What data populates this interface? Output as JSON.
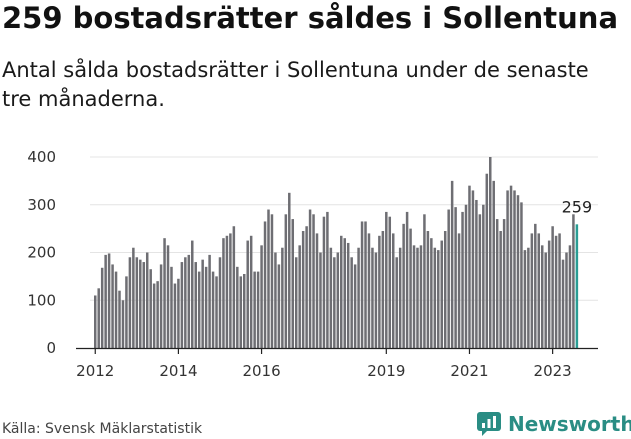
{
  "title": "259 bostadsrätter såldes i Sollentuna",
  "subtitle": "Antal sålda bostadsrätter i Sollentuna under de senaste tre månaderna.",
  "source": "Källa: Svensk Mäklarstatistik",
  "brand": {
    "name": "Newsworthy",
    "color": "#2a8d84",
    "icon": "newsworthy-logo-icon"
  },
  "colors": {
    "bar": "#6e6e73",
    "highlight": "#2a9d94",
    "axis": "#222222",
    "grid": "#e4e4e4"
  },
  "chart_data": {
    "type": "bar",
    "title": "259 bostadsrätter såldes i Sollentuna",
    "xlabel": "",
    "ylabel": "",
    "ylim": [
      0,
      400
    ],
    "yticks": [
      0,
      100,
      200,
      300,
      400
    ],
    "grid": true,
    "start": {
      "year": 2012,
      "month": 1
    },
    "xtick_labels": [
      "2012",
      "2014",
      "2016",
      "2019",
      "2021",
      "2023"
    ],
    "xtick_years": [
      2012,
      2014,
      2016,
      2019,
      2021,
      2023
    ],
    "values": [
      110,
      125,
      168,
      195,
      198,
      175,
      160,
      120,
      100,
      150,
      190,
      210,
      190,
      185,
      180,
      200,
      165,
      135,
      140,
      175,
      230,
      215,
      170,
      135,
      145,
      180,
      190,
      195,
      225,
      180,
      160,
      185,
      170,
      195,
      160,
      150,
      190,
      230,
      235,
      240,
      255,
      170,
      150,
      155,
      225,
      235,
      160,
      160,
      215,
      265,
      290,
      280,
      200,
      175,
      210,
      280,
      325,
      270,
      190,
      215,
      245,
      255,
      290,
      280,
      240,
      200,
      275,
      285,
      210,
      190,
      200,
      235,
      230,
      220,
      190,
      175,
      210,
      265,
      265,
      240,
      210,
      200,
      235,
      245,
      285,
      275,
      240,
      190,
      210,
      260,
      285,
      250,
      215,
      210,
      215,
      280,
      245,
      230,
      210,
      205,
      225,
      245,
      290,
      350,
      295,
      240,
      285,
      300,
      340,
      330,
      310,
      280,
      300,
      365,
      400,
      350,
      270,
      245,
      270,
      330,
      340,
      330,
      320,
      305,
      205,
      210,
      240,
      260,
      240,
      215,
      200,
      225,
      255,
      235,
      240,
      185,
      200,
      215,
      280,
      259
    ],
    "highlight_last": 1,
    "annotation": {
      "text": "259",
      "value": 259
    },
    "series": [
      {
        "name": "Antal sålda bostadsrätter",
        "values_ref": "values"
      }
    ]
  }
}
